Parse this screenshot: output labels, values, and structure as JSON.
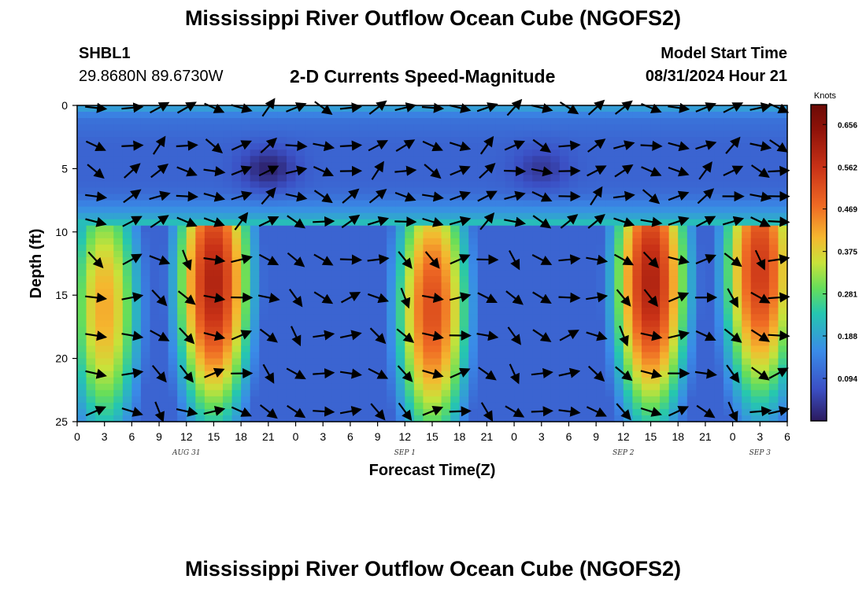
{
  "header": {
    "title": "Mississippi River Outflow Ocean Cube (NGOFS2)",
    "station_id": "SHBL1",
    "station_coords": "29.8680N  89.6730W",
    "plot_title": "2-D Currents Speed-Magnitude",
    "model_start_label": "Model Start Time",
    "model_start_value": "08/31/2024 Hour 21"
  },
  "footer": {
    "title": "Mississippi River Outflow Ocean Cube (NGOFS2)"
  },
  "chart_data": {
    "type": "heatmap",
    "xlabel": "Forecast Time(Z)",
    "ylabel": "Depth (ft)",
    "x_unit": "forecast hours from 00Z Aug 31",
    "xlim": [
      0,
      78
    ],
    "ylim": [
      25,
      0
    ],
    "x_tick_labels": [
      "0",
      "3",
      "6",
      "9",
      "12",
      "15",
      "18",
      "21",
      "0",
      "3",
      "6",
      "9",
      "12",
      "15",
      "18",
      "21",
      "0",
      "3",
      "6",
      "9",
      "12",
      "15",
      "18",
      "21",
      "0",
      "3",
      "6"
    ],
    "date_labels": [
      {
        "hour": 12,
        "text": "AUG 31"
      },
      {
        "hour": 36,
        "text": "SEP 1"
      },
      {
        "hour": 60,
        "text": "SEP 2"
      },
      {
        "hour": 75,
        "text": "SEP 3"
      }
    ],
    "y_ticks": [
      0,
      5,
      10,
      15,
      20,
      25
    ],
    "colorbar": {
      "title": "Knots",
      "ticks": [
        0.656,
        0.562,
        0.469,
        0.375,
        0.281,
        0.188,
        0.094
      ],
      "vmin": 0.0,
      "vmax": 0.7
    },
    "depth_rows_ft": [
      0,
      1,
      2,
      3,
      4,
      5,
      6,
      7,
      8,
      9,
      10,
      11,
      12,
      13,
      14,
      15,
      16,
      17,
      18,
      19,
      20,
      21,
      22,
      23,
      24,
      25
    ],
    "column_profiles": [
      {
        "hours": [
          0,
          78
        ],
        "speeds_knots": [
          0.2,
          0.12,
          0.11,
          0.1,
          0.1,
          0.1,
          0.1,
          0.11,
          0.15,
          0.2,
          0.3,
          0.33,
          0.35,
          0.36,
          0.36,
          0.37,
          0.37,
          0.37,
          0.37,
          0.36,
          0.36,
          0.36,
          0.35,
          0.34,
          0.33,
          0.32
        ]
      }
    ],
    "speed_cores_knots": [
      {
        "hour_center": 15,
        "depth_center_ft": 14,
        "peak": 0.6
      },
      {
        "hour_center": 39,
        "depth_center_ft": 16,
        "peak": 0.52
      },
      {
        "hour_center": 63,
        "depth_center_ft": 14,
        "peak": 0.6
      },
      {
        "hour_center": 75,
        "depth_center_ft": 13,
        "peak": 0.55
      },
      {
        "hour_center": 3,
        "depth_center_ft": 16,
        "peak": 0.42
      },
      {
        "hour_center": 21,
        "depth_center_ft": 5,
        "peak": 0.01
      },
      {
        "hour_center": 51,
        "depth_center_ft": 5,
        "peak": 0.04
      }
    ],
    "vector_rows_ft": [
      0,
      3,
      5,
      7,
      9,
      12,
      15,
      18,
      21,
      24
    ],
    "vector_columns_hours": [
      2,
      6,
      9,
      12,
      15,
      18,
      21,
      24,
      27,
      30,
      33,
      36,
      39,
      42,
      45,
      48,
      51,
      54,
      57,
      60,
      63,
      66,
      69,
      72,
      75,
      78
    ]
  }
}
